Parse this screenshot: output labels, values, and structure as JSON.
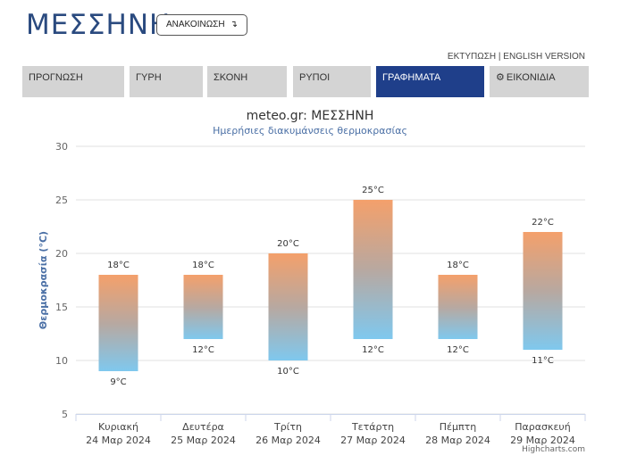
{
  "header": {
    "city": "ΜΕΣΣΗΝΗ",
    "announcement_label": "ΑΝΑΚΟΙΝΩΣΗ",
    "announcement_icon": "arrow-down-icon",
    "print_link": "ΕΚΤΥΠΩΣΗ",
    "link_separator": " | ",
    "english_link": "ENGLISH VERSION"
  },
  "nav": {
    "tabs": [
      {
        "label": "ΠΡΟΓΝΩΣΗ",
        "active": false
      },
      {
        "label": "ΓΥΡΗ",
        "active": false
      },
      {
        "label": "ΣΚΟΝΗ",
        "active": false
      },
      {
        "label": "ΡΥΠΟΙ",
        "active": false
      },
      {
        "label": "ΓΡΑΦΗΜΑΤΑ",
        "active": true
      },
      {
        "label": "ΕΙΚΟΝΙΔΙΑ",
        "active": false,
        "icon": "gear-icon"
      }
    ],
    "active_color": "#1f3f8a",
    "inactive_color": "#d4d4d4"
  },
  "chart_data": {
    "type": "bar",
    "title": "meteo.gr: ΜΕΣΣΗΝΗ",
    "subtitle": "Ημερήσιες διακυμάνσεις θερμοκρασίας",
    "ylabel": "Θερμοκρασία (°C)",
    "ylim": [
      5,
      30
    ],
    "yticks": [
      5,
      10,
      15,
      20,
      25,
      30
    ],
    "grid": true,
    "credits": "Highcharts.com",
    "categories": [
      {
        "day": "Κυριακή",
        "date": "24 Μαρ 2024"
      },
      {
        "day": "Δευτέρα",
        "date": "25 Μαρ 2024"
      },
      {
        "day": "Τρίτη",
        "date": "26 Μαρ 2024"
      },
      {
        "day": "Τετάρτη",
        "date": "27 Μαρ 2024"
      },
      {
        "day": "Πέμπτη",
        "date": "28 Μαρ 2024"
      },
      {
        "day": "Παρασκευή",
        "date": "29 Μαρ 2024"
      }
    ],
    "low": [
      9,
      12,
      10,
      12,
      12,
      11
    ],
    "high": [
      18,
      18,
      20,
      25,
      18,
      22
    ],
    "low_labels": [
      "9°C",
      "12°C",
      "10°C",
      "12°C",
      "12°C",
      "11°C"
    ],
    "high_labels": [
      "18°C",
      "18°C",
      "20°C",
      "25°C",
      "18°C",
      "22°C"
    ],
    "colors": {
      "warm": "#f4a06b",
      "cool": "#7fc8ee",
      "title": "#333333",
      "subtitle": "#4a6fa5",
      "axis_title": "#4a6fa5"
    }
  }
}
